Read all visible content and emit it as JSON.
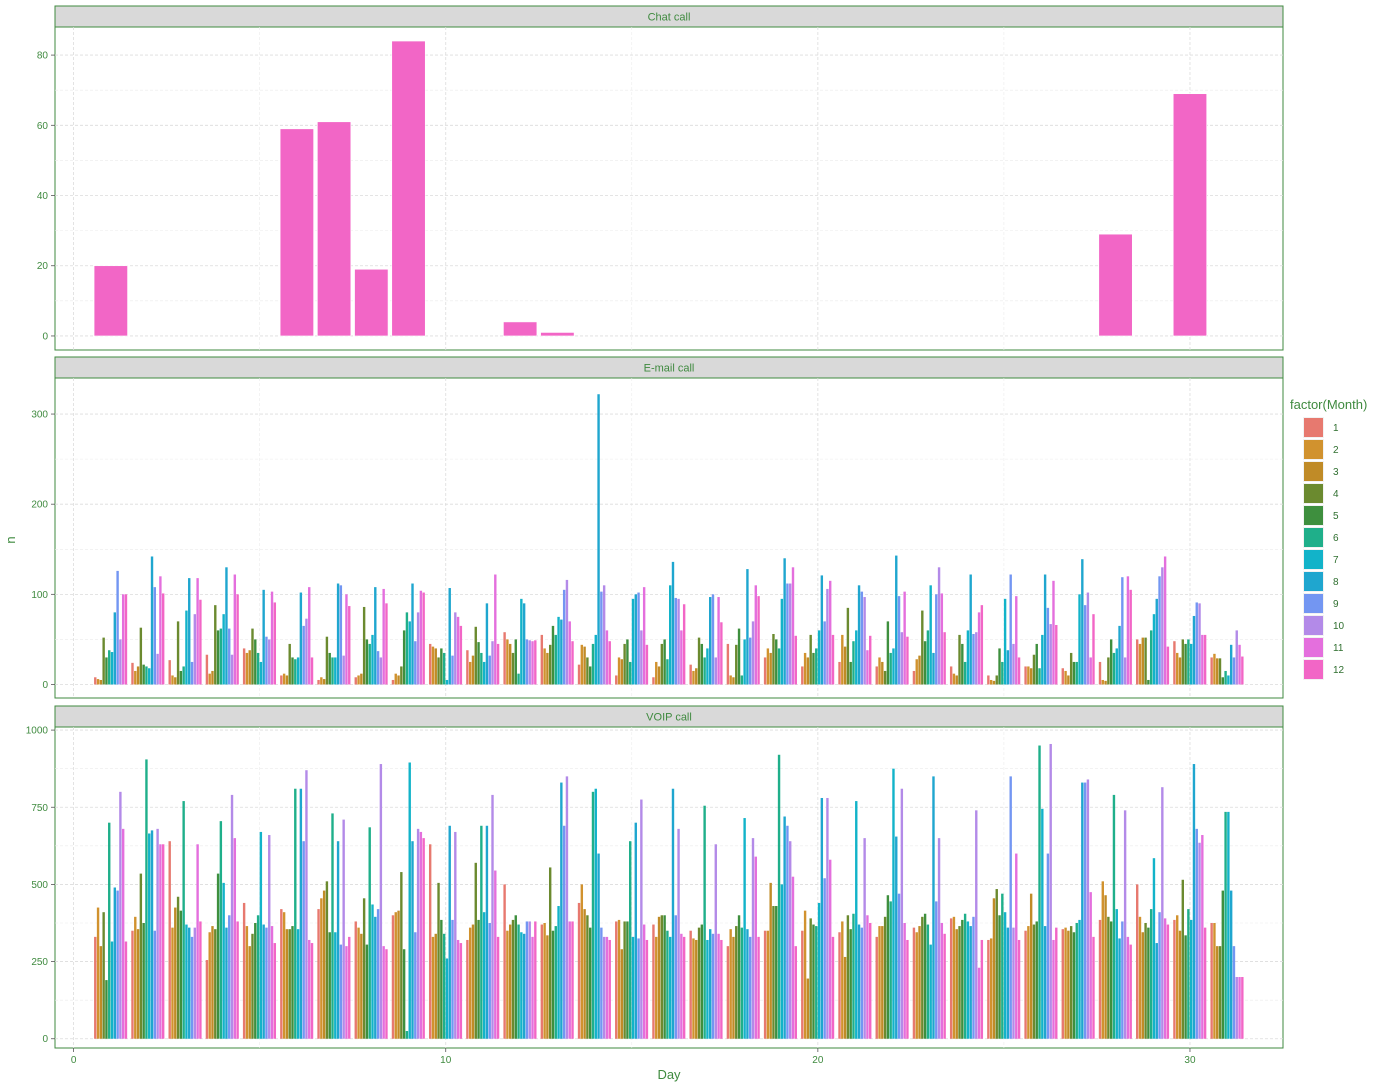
{
  "chart_data": {
    "type": "bar",
    "layout": "facet_wrap",
    "xlabel": "Day",
    "ylabel": "n",
    "legend": {
      "title": "factor(Month)",
      "position": "right",
      "labels": [
        "1",
        "2",
        "3",
        "4",
        "5",
        "6",
        "7",
        "8",
        "9",
        "10",
        "11",
        "12"
      ],
      "colors": [
        "#E7796F",
        "#D1922E",
        "#C08B27",
        "#6B8A2F",
        "#3E8F3E",
        "#1FAF8A",
        "#12B3C9",
        "#1FA6CF",
        "#7396F2",
        "#B38AE8",
        "#E46FDD",
        "#F266C6"
      ]
    },
    "x_ticks": [
      0,
      10,
      20,
      30
    ],
    "x_range": [
      -0.5,
      32.5
    ],
    "grid": true,
    "panels": [
      {
        "strip": "Chat call",
        "y_ticks": [
          0,
          20,
          40,
          60,
          80
        ],
        "y_range": [
          -4,
          88
        ],
        "month": 12,
        "days": [
          1,
          6,
          7,
          8,
          9,
          12,
          13,
          28,
          30
        ],
        "values": [
          20,
          59,
          61,
          19,
          84,
          4,
          1,
          29,
          69
        ]
      },
      {
        "strip": "E-mail call",
        "y_ticks": [
          0,
          100,
          200,
          300
        ],
        "y_range": [
          -15,
          340
        ],
        "note_max": 322,
        "days": [
          1,
          2,
          3,
          4,
          5,
          6,
          7,
          8,
          9,
          10,
          11,
          12,
          13,
          14,
          15,
          16,
          17,
          18,
          19,
          20,
          21,
          22,
          23,
          24,
          25,
          26,
          27,
          28,
          29,
          30,
          31
        ],
        "series": [
          {
            "month": 1,
            "values": [
              8,
              24,
              27,
              33,
              40,
              10,
              5,
              8,
              5,
              45,
              38,
              58,
              55,
              22,
              10,
              8,
              22,
              45,
              30,
              20,
              25,
              20,
              15,
              20,
              10,
              20,
              18,
              25,
              50,
              48,
              30
            ]
          },
          {
            "month": 2,
            "values": [
              6,
              15,
              10,
              12,
              35,
              12,
              8,
              10,
              12,
              42,
              25,
              50,
              40,
              44,
              30,
              25,
              15,
              10,
              40,
              35,
              55,
              30,
              28,
              12,
              5,
              20,
              15,
              5,
              45,
              35,
              34
            ]
          },
          {
            "month": 3,
            "values": [
              5,
              20,
              8,
              15,
              38,
              10,
              6,
              12,
              10,
              40,
              32,
              45,
              35,
              42,
              28,
              20,
              18,
              8,
              35,
              30,
              42,
              25,
              32,
              10,
              4,
              18,
              10,
              4,
              52,
              30,
              29
            ]
          },
          {
            "month": 4,
            "values": [
              52,
              63,
              70,
              88,
              62,
              45,
              53,
              86,
              20,
              30,
              64,
              35,
              44,
              30,
              45,
              45,
              52,
              44,
              56,
              55,
              85,
              15,
              82,
              55,
              10,
              33,
              35,
              30,
              52,
              50,
              29
            ]
          },
          {
            "month": 5,
            "values": [
              30,
              22,
              15,
              60,
              50,
              30,
              35,
              50,
              60,
              40,
              47,
              50,
              65,
              20,
              50,
              50,
              45,
              62,
              50,
              35,
              25,
              70,
              48,
              45,
              40,
              45,
              25,
              50,
              5,
              45,
              8
            ]
          },
          {
            "month": 6,
            "values": [
              38,
              20,
              20,
              62,
              35,
              28,
              30,
              45,
              80,
              35,
              35,
              12,
              55,
              45,
              25,
              28,
              30,
              10,
              40,
              40,
              48,
              35,
              60,
              25,
              25,
              18,
              25,
              35,
              60,
              50,
              15
            ]
          },
          {
            "month": 7,
            "values": [
              36,
              18,
              82,
              78,
              25,
              30,
              30,
              55,
              70,
              5,
              25,
              95,
              75,
              55,
              95,
              110,
              40,
              50,
              95,
              60,
              60,
              40,
              110,
              60,
              95,
              55,
              100,
              40,
              78,
              45,
              10
            ]
          },
          {
            "month": 8,
            "values": [
              80,
              142,
              118,
              130,
              105,
              102,
              112,
              108,
              112,
              107,
              90,
              90,
              72,
              322,
              100,
              136,
              97,
              128,
              140,
              121,
              110,
              143,
              35,
              122,
              38,
              122,
              139,
              65,
              95,
              76,
              44
            ]
          },
          {
            "month": 9,
            "values": [
              126,
              108,
              25,
              62,
              53,
              65,
              110,
              37,
              48,
              32,
              32,
              50,
              105,
              103,
              102,
              96,
              100,
              52,
              112,
              70,
              103,
              98,
              100,
              56,
              122,
              85,
              88,
              119,
              120,
              91,
              30
            ]
          },
          {
            "month": 10,
            "values": [
              50,
              34,
              78,
              33,
              50,
              73,
              32,
              30,
              80,
              80,
              48,
              49,
              116,
              110,
              60,
              95,
              30,
              70,
              112,
              106,
              97,
              58,
              130,
              58,
              45,
              67,
              102,
              30,
              130,
              90,
              60
            ]
          },
          {
            "month": 11,
            "values": [
              100,
              120,
              118,
              122,
              103,
              108,
              100,
              106,
              104,
              75,
              122,
              48,
              70,
              60,
              108,
              60,
              97,
              110,
              130,
              115,
              38,
              103,
              101,
              80,
              98,
              115,
              30,
              120,
              142,
              55,
              44
            ]
          },
          {
            "month": 12,
            "values": [
              100,
              101,
              94,
              100,
              91,
              30,
              87,
              90,
              102,
              65,
              45,
              49,
              48,
              48,
              44,
              89,
              69,
              98,
              54,
              55,
              54,
              53,
              58,
              88,
              30,
              66,
              78,
              105,
              42,
              55,
              31
            ]
          }
        ]
      },
      {
        "strip": "VOIP call",
        "y_ticks": [
          0,
          250,
          500,
          750,
          1000
        ],
        "y_range": [
          -30,
          1010
        ],
        "days": [
          1,
          2,
          3,
          4,
          5,
          6,
          7,
          8,
          9,
          10,
          11,
          12,
          13,
          14,
          15,
          16,
          17,
          18,
          19,
          20,
          21,
          22,
          23,
          24,
          25,
          26,
          27,
          28,
          29,
          30,
          31
        ],
        "series": [
          {
            "month": 1,
            "values": [
              330,
              350,
              640,
              255,
              440,
              420,
              420,
              380,
              400,
              630,
              320,
              500,
              370,
              440,
              380,
              370,
              350,
              300,
              350,
              350,
              345,
              330,
              360,
              390,
              320,
              350,
              355,
              385,
              500,
              385,
              375
            ]
          },
          {
            "month": 2,
            "values": [
              425,
              395,
              360,
              345,
              365,
              410,
              455,
              360,
              410,
              330,
              360,
              350,
              375,
              500,
              385,
              330,
              325,
              355,
              350,
              415,
              380,
              365,
              345,
              395,
              325,
              365,
              360,
              510,
              395,
              400,
              375
            ]
          },
          {
            "month": 3,
            "values": [
              300,
              355,
              425,
              365,
              300,
              355,
              480,
              340,
              415,
              340,
              370,
              370,
              335,
              420,
              290,
              395,
              320,
              330,
              505,
              195,
              265,
              365,
              365,
              355,
              455,
              470,
              350,
              465,
              345,
              350,
              300
            ]
          },
          {
            "month": 4,
            "values": [
              410,
              535,
              460,
              355,
              340,
              355,
              510,
              455,
              540,
              505,
              570,
              385,
              555,
              400,
              380,
              400,
              360,
              365,
              430,
              390,
              400,
              395,
              395,
              365,
              485,
              370,
              365,
              395,
              375,
              515,
              300
            ]
          },
          {
            "month": 5,
            "values": [
              190,
              375,
              415,
              535,
              375,
              365,
              345,
              305,
              290,
              385,
              385,
              400,
              350,
              360,
              380,
              400,
              370,
              400,
              430,
              370,
              355,
              465,
              405,
              385,
              400,
              380,
              345,
              380,
              360,
              335,
              480
            ]
          },
          {
            "month": 6,
            "values": [
              700,
              905,
              770,
              705,
              400,
              810,
              730,
              685,
              25,
              340,
              690,
              370,
              365,
              800,
              640,
              350,
              755,
              360,
              920,
              365,
              405,
              445,
              370,
              405,
              470,
              950,
              375,
              790,
              420,
              420,
              735
            ]
          },
          {
            "month": 7,
            "values": [
              315,
              665,
              370,
              505,
              670,
              355,
              345,
              435,
              895,
              260,
              410,
              345,
              430,
              810,
              330,
              330,
              320,
              715,
              500,
              440,
              770,
              875,
              305,
              380,
              410,
              745,
              385,
              420,
              585,
              385,
              735
            ]
          },
          {
            "month": 8,
            "values": [
              490,
              675,
              360,
              360,
              370,
              810,
              640,
              395,
              640,
              690,
              690,
              340,
              830,
              600,
              700,
              810,
              355,
              355,
              720,
              780,
              370,
              655,
              850,
              365,
              360,
              365,
              830,
              325,
              310,
              890,
              480
            ]
          },
          {
            "month": 9,
            "values": [
              480,
              350,
              330,
              400,
              360,
              640,
              305,
              420,
              345,
              385,
              375,
              380,
              690,
              360,
              325,
              400,
              340,
              330,
              690,
              520,
              360,
              470,
              445,
              395,
              850,
              600,
              830,
              380,
              410,
              680,
              300
            ]
          },
          {
            "month": 10,
            "values": [
              800,
              680,
              360,
              790,
              660,
              870,
              710,
              890,
              680,
              670,
              790,
              380,
              850,
              330,
              775,
              680,
              630,
              650,
              640,
              780,
              650,
              810,
              650,
              740,
              360,
              955,
              840,
              740,
              815,
              635,
              200
            ]
          },
          {
            "month": 11,
            "values": [
              680,
              630,
              630,
              650,
              365,
              320,
              300,
              300,
              670,
              320,
              545,
              330,
              380,
              330,
              370,
              340,
              340,
              590,
              525,
              580,
              400,
              375,
              375,
              230,
              600,
              320,
              475,
              330,
              390,
              660,
              200
            ]
          },
          {
            "month": 12,
            "values": [
              315,
              630,
              380,
              380,
              310,
              310,
              330,
              290,
              650,
              310,
              330,
              380,
              380,
              320,
              320,
              330,
              320,
              330,
              300,
              330,
              375,
              320,
              340,
              320,
              320,
              360,
              330,
              305,
              370,
              360,
              200
            ]
          }
        ]
      }
    ]
  }
}
